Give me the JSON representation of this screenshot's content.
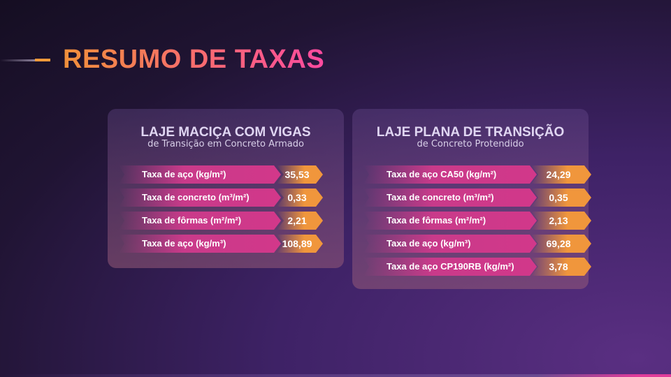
{
  "title": "RESUMO DE TAXAS",
  "cards": [
    {
      "title": "LAJE MACIÇA COM VIGAS",
      "subtitle": "de Transição em Concreto Armado",
      "rows": [
        {
          "label": "Taxa de aço (kg/m²)",
          "value": "35,53"
        },
        {
          "label": "Taxa de concreto (m³/m²)",
          "value": "0,33"
        },
        {
          "label": "Taxa de fôrmas (m²/m²)",
          "value": "2,21"
        },
        {
          "label": "Taxa de aço (kg/m³)",
          "value": "108,89"
        }
      ]
    },
    {
      "title": "LAJE PLANA DE TRANSIÇÃO",
      "subtitle": "de Concreto Protendido",
      "rows": [
        {
          "label": "Taxa de aço CA50 (kg/m²)",
          "value": "24,29"
        },
        {
          "label": "Taxa de concreto (m³/m²)",
          "value": "0,35"
        },
        {
          "label": "Taxa de fôrmas (m²/m²)",
          "value": "2,13"
        },
        {
          "label": "Taxa de aço (kg/m³)",
          "value": "69,28"
        },
        {
          "label": "Taxa de aço CP190RB (kg/m²)",
          "value": "3,78"
        }
      ]
    }
  ],
  "colors": {
    "bar": "#c93a8a",
    "value": "#f0963c",
    "title_start": "#f0903a",
    "title_end": "#ff4aa0"
  }
}
